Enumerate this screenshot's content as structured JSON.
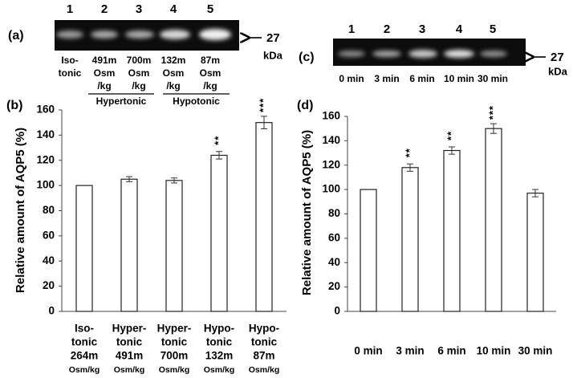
{
  "chart_data": [
    {
      "type": "bar",
      "panel": "(b)",
      "y_label": "Relative amount of AQP5 (%)",
      "categories": [
        [
          "Iso-",
          "tonic",
          "264m",
          "Osm/kg"
        ],
        [
          "Hyper-",
          "tonic",
          "491m",
          "Osm/kg"
        ],
        [
          "Hyper-",
          "tonic",
          "700m",
          "Osm/kg"
        ],
        [
          "Hypo-",
          "tonic",
          "132m",
          "Osm/kg"
        ],
        [
          "Hypo-",
          "tonic",
          "87m",
          "Osm/kg"
        ]
      ],
      "values": [
        100,
        105,
        104,
        124,
        150
      ],
      "errors": [
        0,
        2,
        2,
        3,
        5
      ],
      "significance": [
        null,
        null,
        null,
        "**",
        "***"
      ],
      "color": "#ffffff",
      "ylim": [
        0,
        160
      ],
      "yticks": [
        0,
        20,
        40,
        60,
        80,
        100,
        120,
        140,
        160
      ],
      "grid": false
    },
    {
      "type": "bar",
      "panel": "(d)",
      "y_label": "Relative amount of AQP5 (%)",
      "categories": [
        [
          "0 min"
        ],
        [
          "3 min"
        ],
        [
          "6 min"
        ],
        [
          "10 min"
        ],
        [
          "30 min"
        ]
      ],
      "values": [
        100,
        118,
        132,
        150,
        97
      ],
      "errors": [
        0,
        3,
        3,
        4,
        3
      ],
      "significance": [
        null,
        "**",
        "**",
        "***",
        null
      ],
      "color": "#ffffff",
      "ylim": [
        0,
        160
      ],
      "yticks": [
        0,
        20,
        40,
        60,
        80,
        100,
        120,
        140,
        160
      ],
      "grid": false
    }
  ],
  "blots": [
    {
      "panel": "(a)",
      "lanes": [
        "1",
        "2",
        "3",
        "4",
        "5"
      ],
      "marker": "27",
      "unit": "kDa",
      "lane_labels": [
        [
          "Iso-",
          "tonic"
        ],
        [
          "491m",
          "Osm",
          "/kg"
        ],
        [
          "700m",
          "Osm",
          "/kg"
        ],
        [
          "132m",
          "Osm",
          "/kg"
        ],
        [
          "87m",
          "Osm",
          "/kg"
        ]
      ],
      "groups": [
        "Hypertonic",
        "Hypotonic"
      ]
    },
    {
      "panel": "(c)",
      "lanes": [
        "1",
        "2",
        "3",
        "4",
        "5"
      ],
      "marker": "27",
      "unit": "kDa",
      "lane_labels": [
        [
          "0 min"
        ],
        [
          "3 min"
        ],
        [
          "6 min"
        ],
        [
          "10 min"
        ],
        [
          "30 min"
        ]
      ]
    }
  ]
}
